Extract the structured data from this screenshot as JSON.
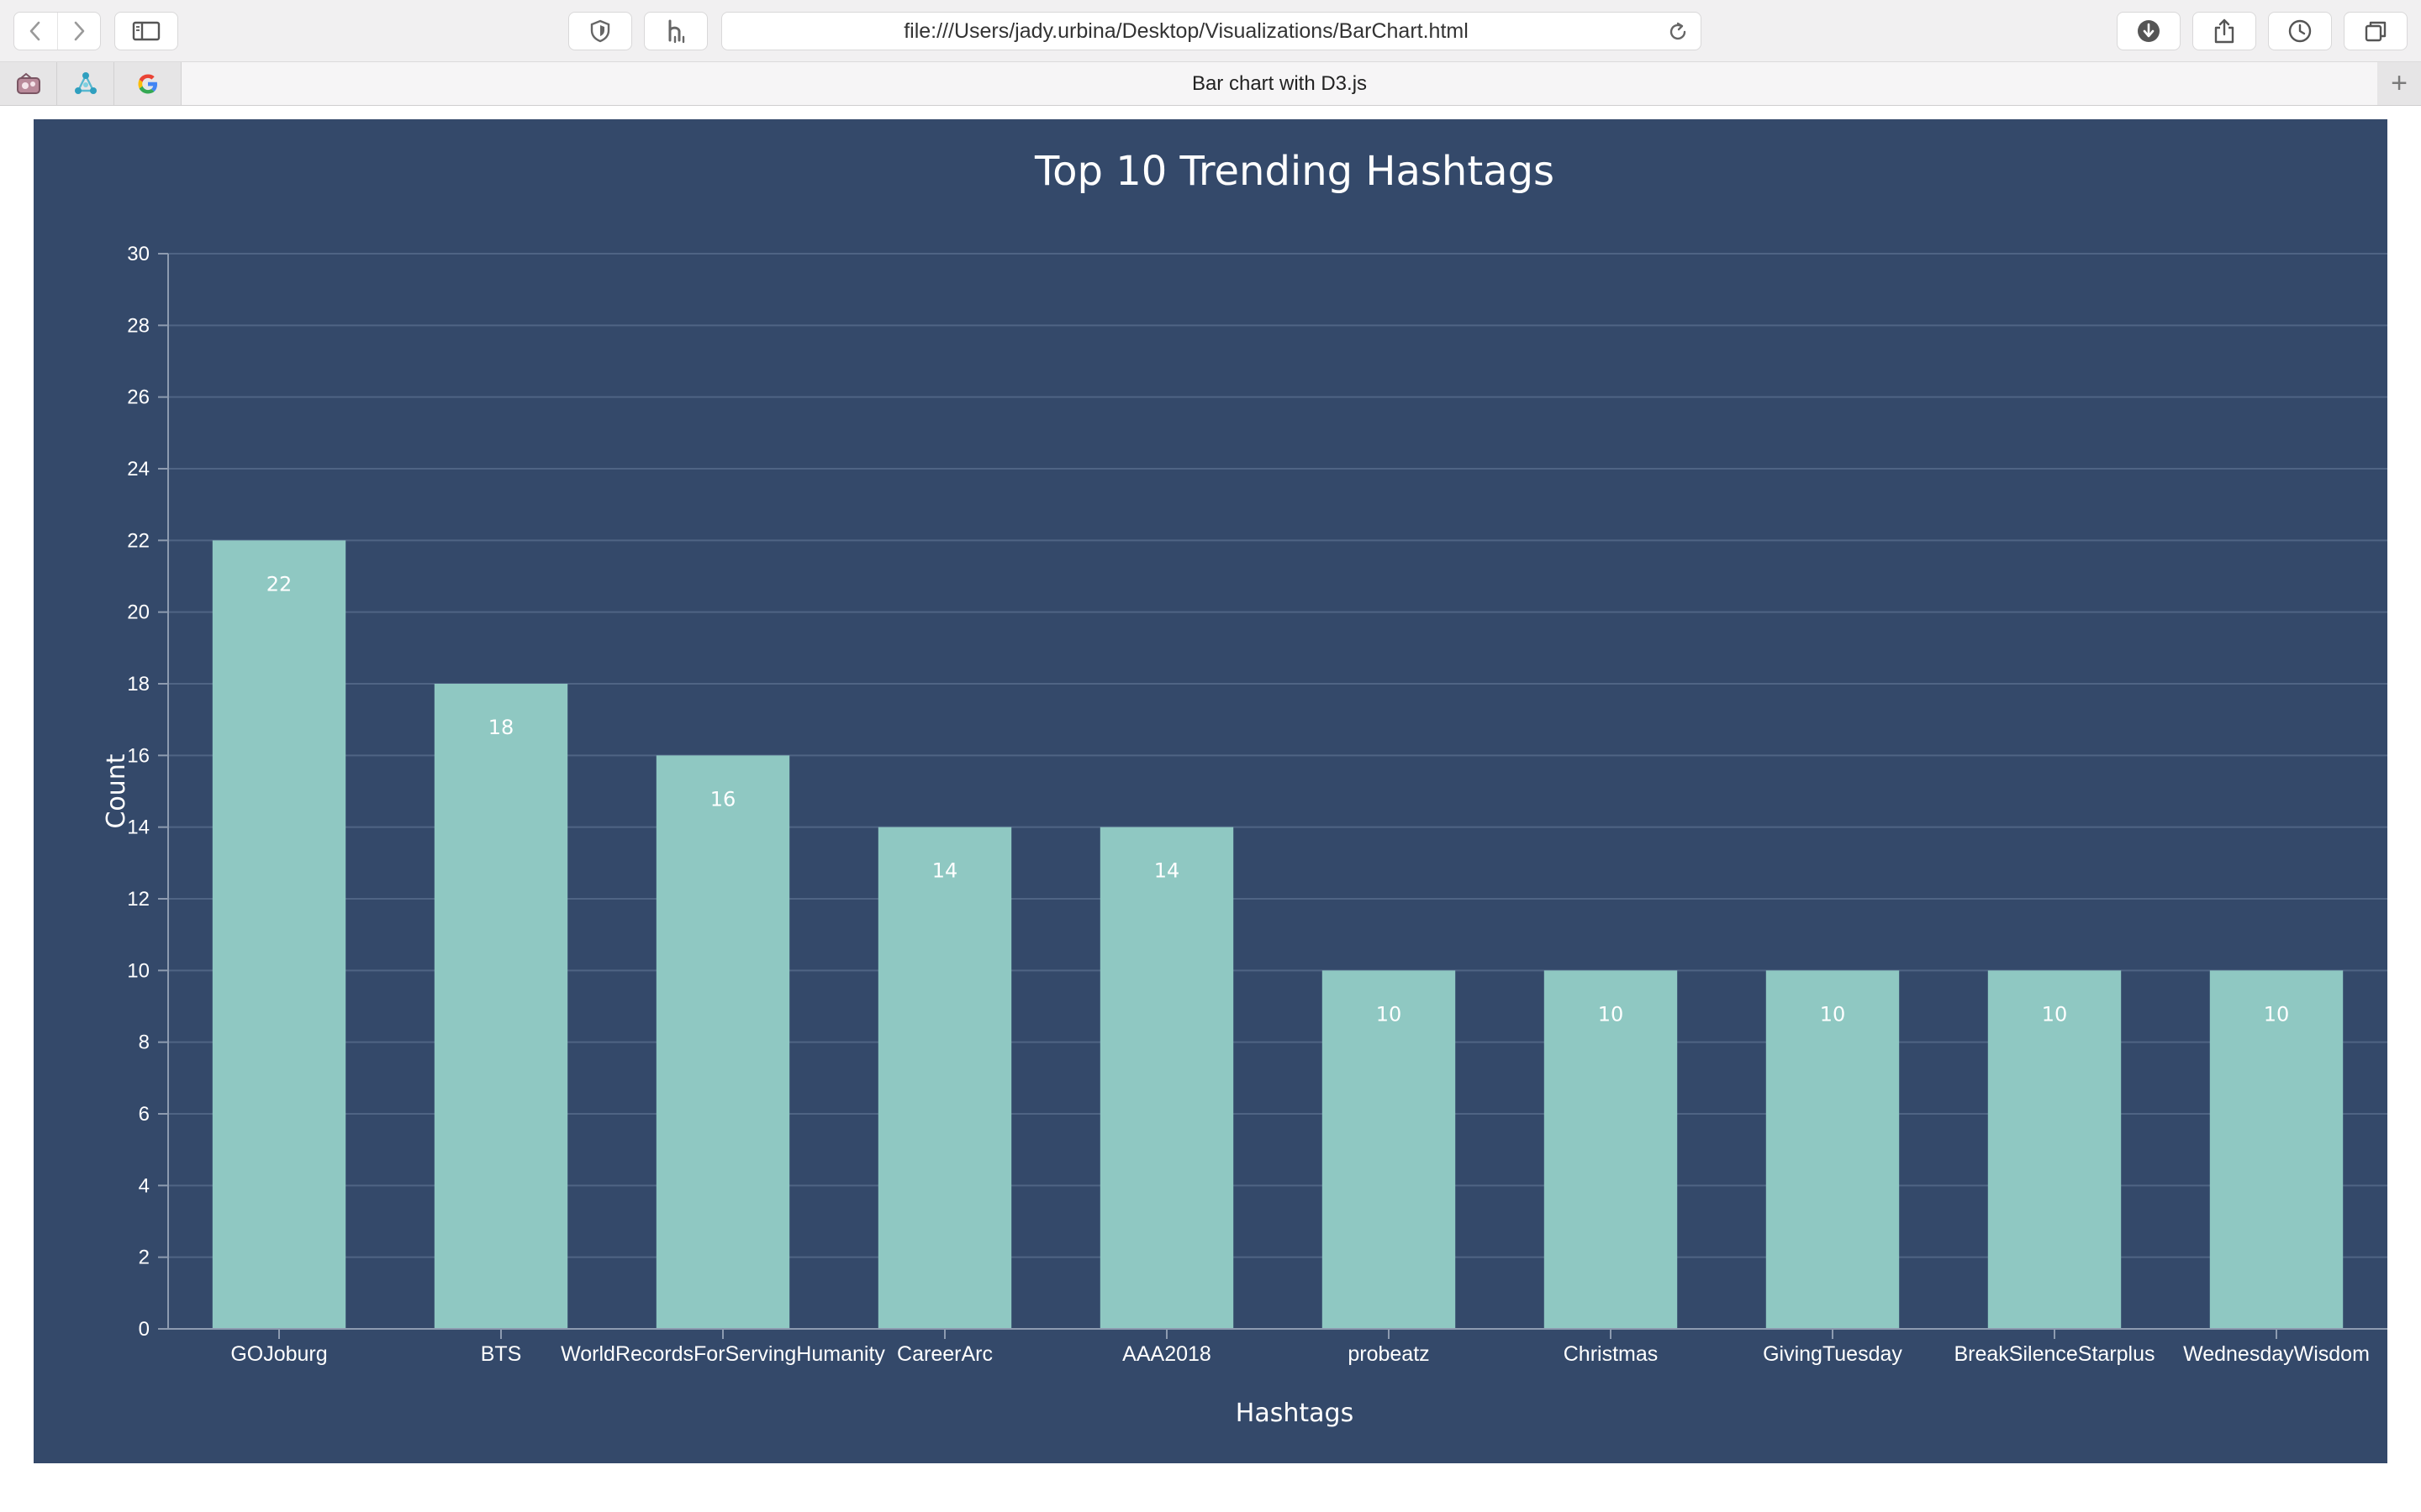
{
  "browser": {
    "url": "file:///Users/jady.urbina/Desktop/Visualizations/BarChart.html",
    "tab_title": "Bar chart with D3.js",
    "new_tab_symbol": "+",
    "favicons": [
      "bookmark-app-icon",
      "network-app-icon",
      "google-icon"
    ],
    "google_letter": "G"
  },
  "colors": {
    "panel_background": "#34496a",
    "bar": "#8fc8c2",
    "grid": "#4f6484",
    "axis": "#8d9bb0",
    "text": "#ffffff"
  },
  "chart_data": {
    "type": "bar",
    "title": "Top 10 Trending Hashtags",
    "xlabel": "Hashtags",
    "ylabel": "Count",
    "categories": [
      "GOJoburg",
      "BTS",
      "WorldRecordsForServingHumanity",
      "CareerArc",
      "AAA2018",
      "probeatz",
      "Christmas",
      "GivingTuesday",
      "BreakSilenceStarplus",
      "WednesdayWisdom"
    ],
    "values": [
      22,
      18,
      16,
      14,
      14,
      10,
      10,
      10,
      10,
      10
    ],
    "ylim": [
      0,
      30
    ],
    "yticks": [
      0,
      2,
      4,
      6,
      8,
      10,
      12,
      14,
      16,
      18,
      20,
      22,
      24,
      26,
      28,
      30
    ],
    "grid": true,
    "data_labels": true
  }
}
